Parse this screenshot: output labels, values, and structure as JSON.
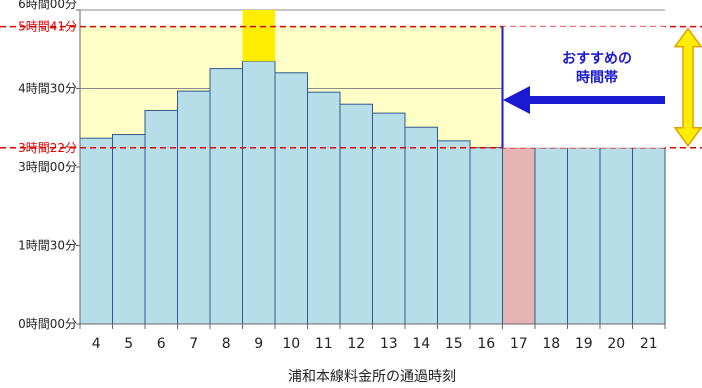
{
  "chart_data": {
    "type": "bar",
    "xlabel": "浦和本線料金所の通過時刻",
    "categories": [
      "4",
      "5",
      "6",
      "7",
      "8",
      "9",
      "10",
      "11",
      "12",
      "13",
      "14",
      "15",
      "16",
      "17",
      "18",
      "19",
      "20",
      "21"
    ],
    "values": [
      3.55,
      3.62,
      4.08,
      4.45,
      4.88,
      5.02,
      4.8,
      4.43,
      4.2,
      4.03,
      3.76,
      3.5,
      3.37,
      3.37,
      3.37,
      3.37,
      3.37,
      3.37
    ],
    "ylim": [
      0,
      6
    ],
    "yticks": [
      {
        "value": 0,
        "label": "0時間00分"
      },
      {
        "value": 1.5,
        "label": "1時間30分"
      },
      {
        "value": 3,
        "label": "3時間00分"
      },
      {
        "value": 4.5,
        "label": "4時間30分"
      },
      {
        "value": 6,
        "label": "6時間00分"
      }
    ],
    "reference_lines": [
      {
        "value": 5.6833,
        "label": "5時間41分",
        "color": "#e00000"
      },
      {
        "value": 3.3667,
        "label": "3時間22分",
        "color": "#e00000"
      }
    ],
    "highlight_category": "9",
    "recommended_category": "17",
    "grid": true,
    "colors": {
      "bar": "#b7dde8",
      "bar_edge": "#2f5b8a",
      "recommended_bar": "#e6b4b3",
      "band": "#fefec7",
      "peak_marker": "#ffee00",
      "reference": "#e00000",
      "callout": "#1a1ad0"
    },
    "callout": {
      "lines": [
        "おすすめの",
        "時間帯"
      ]
    }
  }
}
